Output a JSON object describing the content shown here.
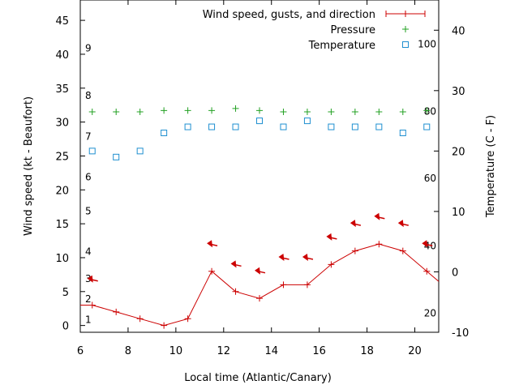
{
  "chart_data": {
    "type": "line",
    "xlabel": "Local time (Atlantic/Canary)",
    "ylabel": "Wind speed (kt - Beaufort)",
    "y2label": "Temperature (C - F)",
    "xlim": [
      6,
      21
    ],
    "ylim": [
      -1,
      48
    ],
    "y2lim": [
      -10,
      45
    ],
    "x_ticks": [
      6,
      8,
      10,
      12,
      14,
      16,
      18,
      20
    ],
    "y_ticks": [
      0,
      5,
      10,
      15,
      20,
      25,
      30,
      35,
      40,
      45
    ],
    "y2_ticks": [
      -10,
      0,
      10,
      20,
      30,
      40
    ],
    "grid": false,
    "legend_position": "top-right",
    "beaufort_labels": [
      {
        "text": "1",
        "y": 1
      },
      {
        "text": "2",
        "y": 4
      },
      {
        "text": "3",
        "y": 7
      },
      {
        "text": "4",
        "y": 11
      },
      {
        "text": "5",
        "y": 17
      },
      {
        "text": "6",
        "y": 22
      },
      {
        "text": "7",
        "y": 28
      },
      {
        "text": "8",
        "y": 34
      },
      {
        "text": "9",
        "y": 41
      }
    ],
    "fahrenheit_labels": [
      {
        "text": "20",
        "y2": -6.7
      },
      {
        "text": "40",
        "y2": 4.4
      },
      {
        "text": "60",
        "y2": 15.6
      },
      {
        "text": "80",
        "y2": 26.7
      },
      {
        "text": "100",
        "y2": 37.8
      }
    ],
    "series": [
      {
        "name": "Wind speed, gusts, and direction",
        "color": "#cc0000",
        "marker": "line+plus",
        "axis": "y",
        "x": [
          6,
          6.5,
          7.5,
          8.5,
          9.5,
          10.5,
          11.5,
          12.5,
          13.5,
          14.5,
          15.5,
          16.5,
          17.5,
          18.5,
          19.5,
          20.5,
          21
        ],
        "values": [
          3,
          3,
          2,
          1,
          0,
          1,
          8,
          5,
          4,
          6,
          6,
          9,
          11,
          12,
          11,
          8,
          6.5
        ]
      },
      {
        "name": "Pressure",
        "color": "#22a022",
        "marker": "plus",
        "axis": "y",
        "x": [
          6.5,
          7.5,
          8.5,
          9.5,
          10.5,
          11.5,
          12.5,
          13.5,
          14.5,
          15.5,
          16.5,
          17.5,
          18.5,
          19.5,
          20.5
        ],
        "values": [
          31.5,
          31.5,
          31.5,
          31.7,
          31.7,
          31.7,
          32,
          31.7,
          31.5,
          31.5,
          31.5,
          31.5,
          31.5,
          31.5,
          31.7
        ]
      },
      {
        "name": "Temperature",
        "color": "#1f8fd0",
        "marker": "square",
        "axis": "y2",
        "x": [
          6.5,
          7.5,
          8.5,
          9.5,
          10.5,
          11.5,
          12.5,
          13.5,
          14.5,
          15.5,
          16.5,
          17.5,
          18.5,
          19.5,
          20.5
        ],
        "values": [
          20,
          19,
          20,
          23,
          24,
          24,
          24,
          25,
          24,
          25,
          24,
          24,
          24,
          23,
          24
        ]
      }
    ],
    "direction_arrows": {
      "color": "#cc0000",
      "x": [
        6.5,
        11.5,
        12.5,
        13.5,
        14.5,
        15.5,
        16.5,
        17.5,
        18.5,
        19.5,
        20.5
      ],
      "y": [
        6.8,
        12,
        9,
        8,
        10,
        10,
        13,
        15,
        16,
        15,
        12
      ]
    }
  }
}
